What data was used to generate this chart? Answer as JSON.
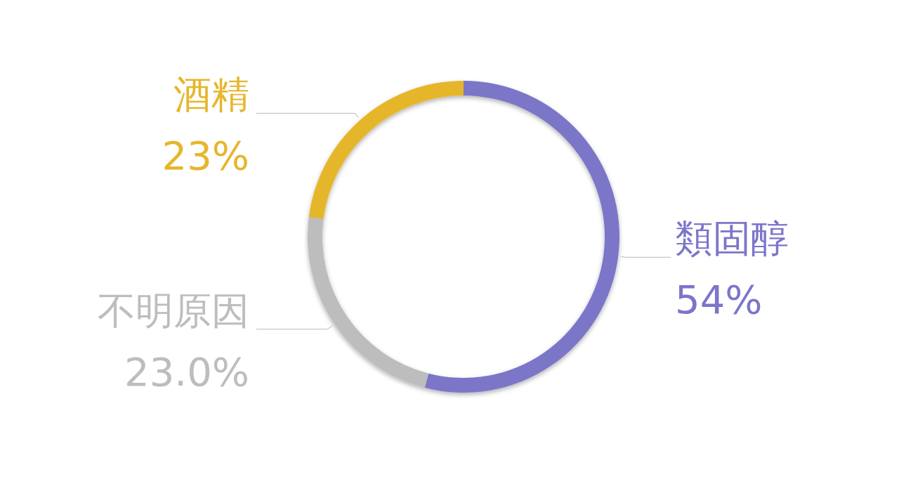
{
  "chart_data": {
    "type": "donut",
    "categories": [
      "類固醇",
      "不明原因",
      "酒精"
    ],
    "values": [
      54,
      23,
      23
    ],
    "colors": [
      "#7b76c9",
      "#bdbdbd",
      "#e6b62c"
    ],
    "value_labels": [
      "54%",
      "23.0%",
      "23%"
    ]
  }
}
